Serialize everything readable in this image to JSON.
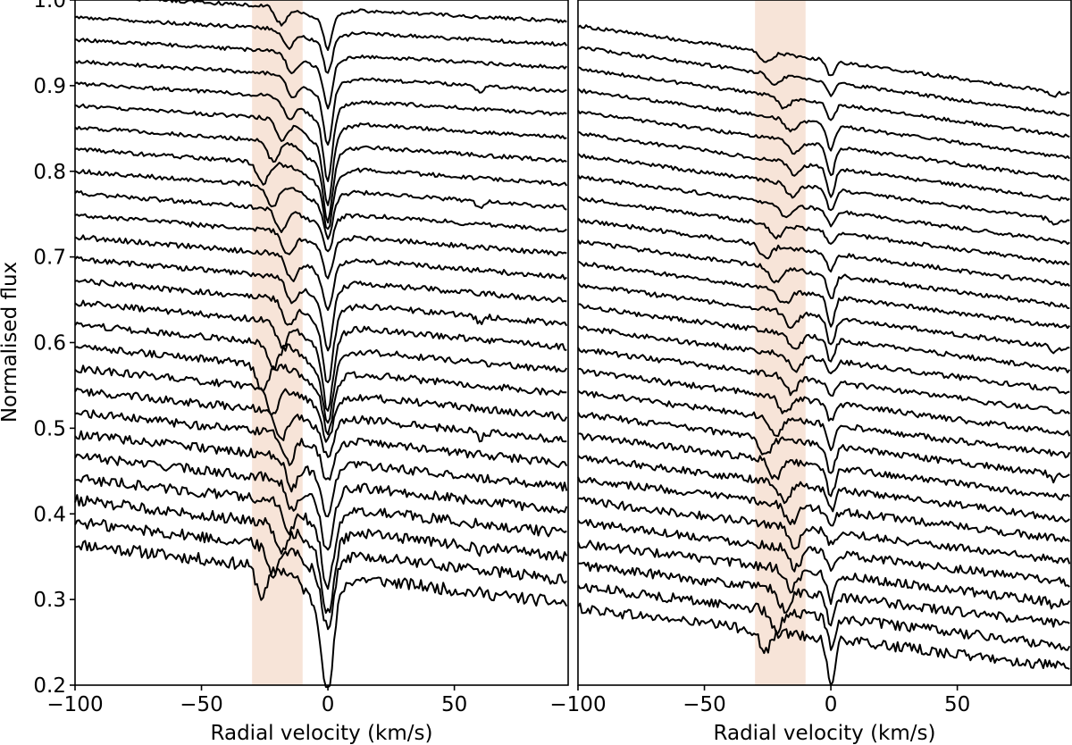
{
  "chart_data": [
    {
      "type": "line",
      "panel": "left",
      "xlabel": "Radial velocity (km/s)",
      "ylabel": "Normalised flux",
      "xlim": [
        -100,
        95
      ],
      "ylim": [
        0.2,
        1.0
      ],
      "xticks": [
        -100,
        -50,
        0,
        50
      ],
      "yticks": [
        0.2,
        0.3,
        0.4,
        0.5,
        0.6,
        0.7,
        0.8,
        0.9,
        1.0
      ],
      "xtick_labels": [
        "−100",
        "−50",
        "0",
        "50"
      ],
      "ytick_labels": [
        "0.2",
        "0.3",
        "0.4",
        "0.5",
        "0.6",
        "0.7",
        "0.8",
        "0.9",
        "1.0"
      ],
      "shaded_band": {
        "x": [
          -30,
          -10
        ],
        "color": "#f7e4d8"
      },
      "series_count": 26,
      "first_spectrum": {
        "start_flux": 0.365,
        "end_flux": 0.295,
        "main_line_rv": 0,
        "main_line_min": 0.235
      },
      "last_spectrum": {
        "start_flux": 1.005,
        "end_flux": 0.975
      },
      "features": [
        {
          "rv": 0,
          "description": "main absorption line"
        },
        {
          "rv": -22,
          "description": "moving secondary absorption"
        },
        {
          "rv": 60,
          "description": "weak line in some spectra"
        }
      ],
      "grid": false
    },
    {
      "type": "line",
      "panel": "right",
      "xlabel": "Radial velocity (km/s)",
      "ylabel": "",
      "xlim": [
        -100,
        95
      ],
      "ylim": [
        0.2,
        1.0
      ],
      "xticks": [
        -100,
        -50,
        0,
        50
      ],
      "xtick_labels": [
        "−100",
        "−50",
        "0",
        "50"
      ],
      "shaded_band": {
        "x": [
          -30,
          -10
        ],
        "color": "#f7e4d8"
      },
      "series_count": 28,
      "first_spectrum": {
        "start_flux": 0.29,
        "end_flux": 0.22,
        "main_line_rv": 0,
        "main_line_min": 0.2
      },
      "last_spectrum": {
        "start_flux": 0.97,
        "end_flux": 0.89
      },
      "features": [
        {
          "rv": 0,
          "description": "main absorption line"
        },
        {
          "rv": -22,
          "description": "moving secondary absorption"
        }
      ],
      "grid": false
    }
  ]
}
